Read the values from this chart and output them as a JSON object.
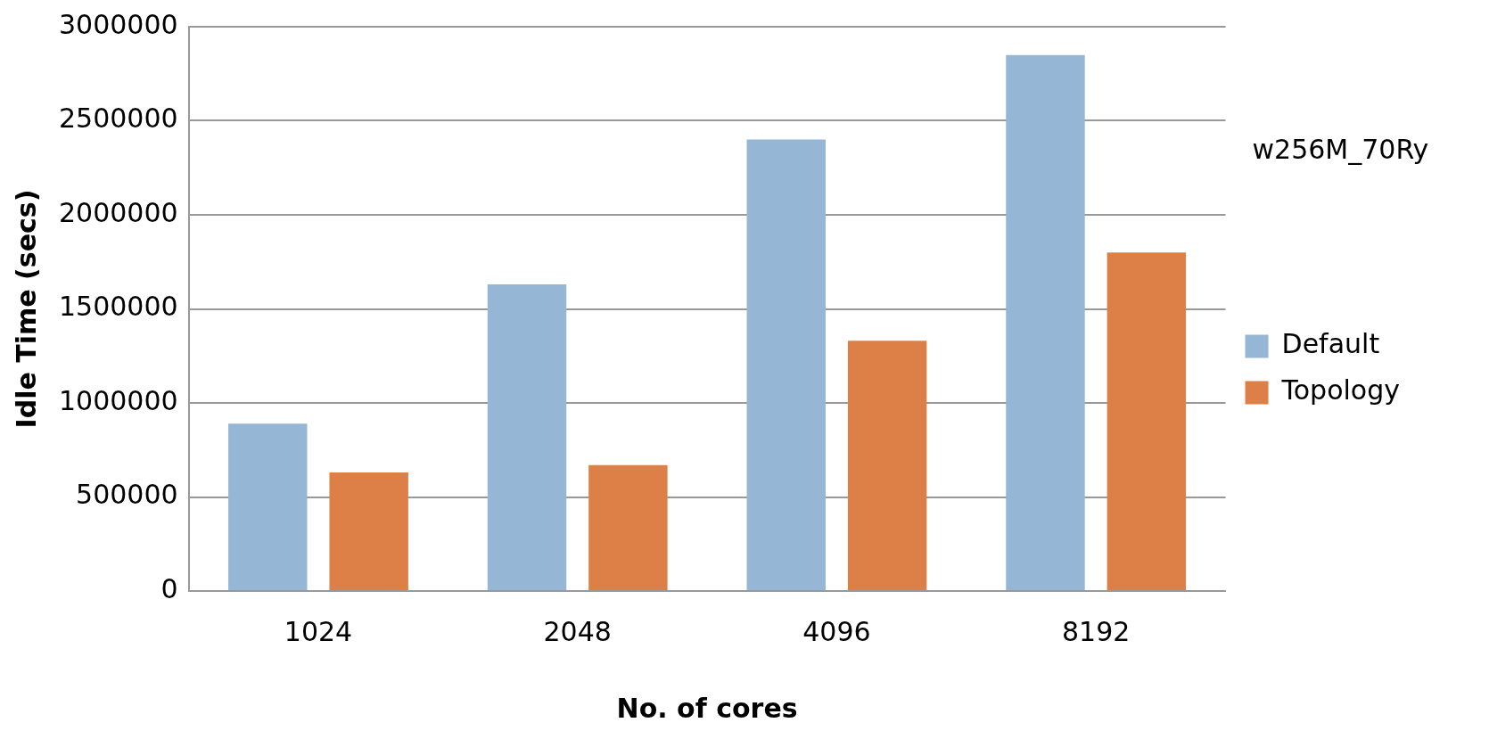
{
  "chart_data": {
    "type": "bar",
    "xlabel": "No. of cores",
    "ylabel": "Idle Time (secs)",
    "categories": [
      "1024",
      "2048",
      "4096",
      "8192"
    ],
    "series": [
      {
        "name": "Default",
        "color": "#95b6d4",
        "values": [
          890000,
          1630000,
          2400000,
          2850000
        ]
      },
      {
        "name": "Topology",
        "color": "#dd8047",
        "values": [
          630000,
          670000,
          1330000,
          1800000
        ]
      }
    ],
    "ylim": [
      0,
      3000000
    ],
    "yticks": [
      0,
      500000,
      1000000,
      1500000,
      2000000,
      2500000,
      3000000
    ],
    "grid": "y",
    "legend": "right",
    "annotations": [
      "w256M_70Ry"
    ]
  }
}
